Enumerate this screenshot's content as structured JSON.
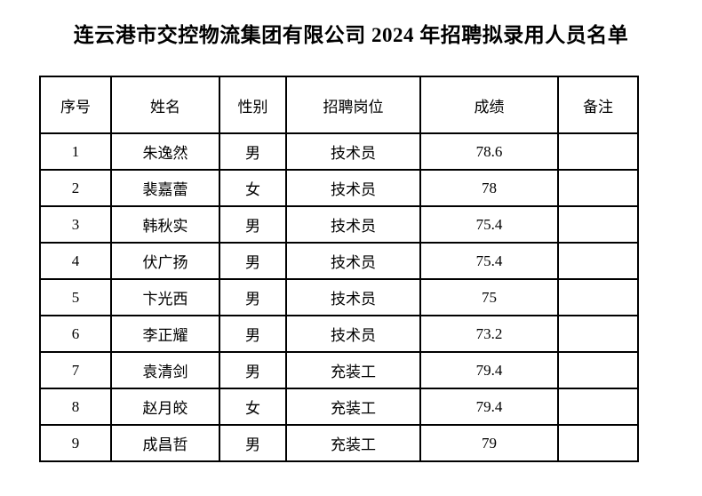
{
  "title": "连云港市交控物流集团有限公司 2024 年招聘拟录用人员名单",
  "colors": {
    "background": "#ffffff",
    "text": "#000000",
    "border": "#000000"
  },
  "table": {
    "headers": {
      "no": "序号",
      "name": "姓名",
      "gender": "性别",
      "position": "招聘岗位",
      "score": "成绩",
      "remark": "备注"
    },
    "rows": [
      {
        "no": "1",
        "name": "朱逸然",
        "gender": "男",
        "position": "技术员",
        "score": "78.6",
        "remark": ""
      },
      {
        "no": "2",
        "name": "裴嘉蕾",
        "gender": "女",
        "position": "技术员",
        "score": "78",
        "remark": ""
      },
      {
        "no": "3",
        "name": "韩秋实",
        "gender": "男",
        "position": "技术员",
        "score": "75.4",
        "remark": ""
      },
      {
        "no": "4",
        "name": "伏广扬",
        "gender": "男",
        "position": "技术员",
        "score": "75.4",
        "remark": ""
      },
      {
        "no": "5",
        "name": "卞光西",
        "gender": "男",
        "position": "技术员",
        "score": "75",
        "remark": ""
      },
      {
        "no": "6",
        "name": "李正耀",
        "gender": "男",
        "position": "技术员",
        "score": "73.2",
        "remark": ""
      },
      {
        "no": "7",
        "name": "袁清剑",
        "gender": "男",
        "position": "充装工",
        "score": "79.4",
        "remark": ""
      },
      {
        "no": "8",
        "name": "赵月皎",
        "gender": "女",
        "position": "充装工",
        "score": "79.4",
        "remark": ""
      },
      {
        "no": "9",
        "name": "成昌哲",
        "gender": "男",
        "position": "充装工",
        "score": "79",
        "remark": ""
      }
    ]
  }
}
